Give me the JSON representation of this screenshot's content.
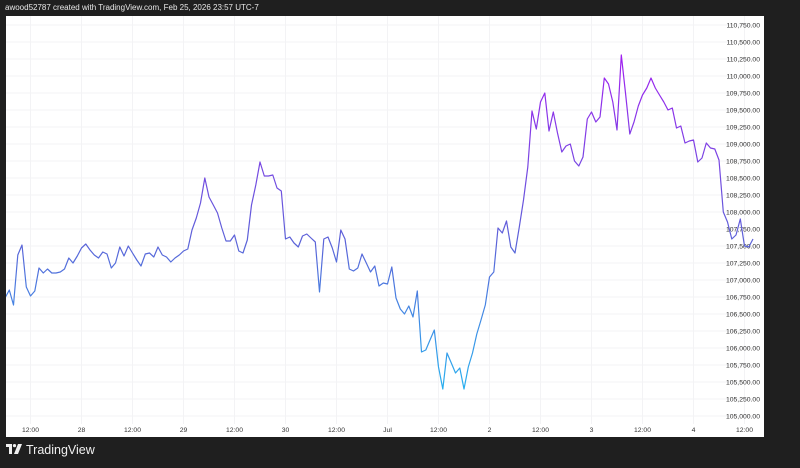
{
  "header": {
    "title": "awood52787 created with TradingView.com, Feb 25, 2026 23:57 UTC-7"
  },
  "footer": {
    "logo_text": "TradingView",
    "logo_mark": "17"
  },
  "colors": {
    "background": "#1f1f1f",
    "plot": "#ffffff",
    "grid": "#f3f3f5",
    "axis_text": "#333333",
    "line_top": "#a020f0",
    "line_mid": "#5b63d8",
    "line_bottom": "#26b3f0"
  },
  "chart_data": {
    "type": "line",
    "title": "",
    "xlabel": "",
    "ylabel": "",
    "grid": true,
    "legend": "none",
    "ylim": [
      104950,
      110900
    ],
    "y_axis_position": "right",
    "y_ticks": [
      "105,000.00",
      "105,250.00",
      "105,500.00",
      "105,750.00",
      "106,000.00",
      "106,250.00",
      "106,500.00",
      "106,750.00",
      "107,000.00",
      "107,250.00",
      "107,500.00",
      "107,750.00",
      "108,000.00",
      "108,250.00",
      "108,500.00",
      "108,750.00",
      "109,000.00",
      "109,250.00",
      "109,500.00",
      "109,750.00",
      "110,000.00",
      "110,250.00",
      "110,500.00",
      "110,750.00"
    ],
    "x_ticks": [
      {
        "label": "12:00",
        "time": "Jun 27 12:00"
      },
      {
        "label": "28",
        "time": "Jun 28 00:00"
      },
      {
        "label": "12:00",
        "time": "Jun 28 12:00"
      },
      {
        "label": "29",
        "time": "Jun 29 00:00"
      },
      {
        "label": "12:00",
        "time": "Jun 29 12:00"
      },
      {
        "label": "30",
        "time": "Jun 30 00:00"
      },
      {
        "label": "12:00",
        "time": "Jun 30 12:00"
      },
      {
        "label": "Jul",
        "time": "Jul 1 00:00"
      },
      {
        "label": "12:00",
        "time": "Jul 1 12:00"
      },
      {
        "label": "2",
        "time": "Jul 2 00:00"
      },
      {
        "label": "12:00",
        "time": "Jul 2 12:00"
      },
      {
        "label": "3",
        "time": "Jul 3 00:00"
      },
      {
        "label": "12:00",
        "time": "Jul 3 12:00"
      },
      {
        "label": "4",
        "time": "Jul 4 00:00"
      },
      {
        "label": "12:00",
        "time": "Jul 4 12:00"
      }
    ],
    "hourly": [
      {
        "date": "Jun 27",
        "first_hour": 6,
        "values": [
          106735,
          106853,
          106632,
          107368,
          107515,
          106897,
          106765,
          106838,
          107176,
          107103,
          107162,
          107103,
          107103,
          107118,
          107162,
          107324,
          107250,
          107353
        ]
      },
      {
        "date": "Jun 28",
        "first_hour": 0,
        "values": [
          107471,
          107529,
          107441,
          107368,
          107324,
          107412,
          107382,
          107176,
          107250,
          107485,
          107353,
          107500,
          107397,
          107294,
          107206,
          107382,
          107397,
          107338,
          107485,
          107368,
          107338,
          107265,
          107324,
          107368
        ]
      },
      {
        "date": "Jun 29",
        "first_hour": 0,
        "values": [
          107426,
          107456,
          107735,
          107912,
          108132,
          108500,
          108221,
          108103,
          107985,
          107765,
          107574,
          107574,
          107662,
          107426,
          107397,
          107588,
          108103,
          108397,
          108735,
          108529,
          108529,
          108544,
          108353,
          108309
        ]
      },
      {
        "date": "Jun 30",
        "first_hour": 0,
        "values": [
          107603,
          107632,
          107544,
          107485,
          107647,
          107676,
          107618,
          107559,
          106824,
          107603,
          107632,
          107471,
          107265,
          107735,
          107603,
          107162,
          107132,
          107176,
          107382,
          107250,
          107118,
          107206,
          106912,
          106956
        ]
      },
      {
        "date": "Jul 1",
        "first_hour": 0,
        "values": [
          106941,
          107191,
          106735,
          106574,
          106500,
          106618,
          106456,
          106838,
          105941,
          105971,
          106118,
          106265,
          105721,
          105397,
          105926,
          105779,
          105632,
          105706,
          105397,
          105721,
          105926,
          106206,
          106412,
          106632
        ]
      },
      {
        "date": "Jul 2",
        "first_hour": 0,
        "values": [
          107044,
          107118,
          107765,
          107691,
          107868,
          107485,
          107397,
          107779,
          108176,
          108662,
          109485,
          109221,
          109618,
          109750,
          109191,
          109471,
          109162,
          108882,
          108971,
          109000,
          108750,
          108676,
          108809,
          109368
        ]
      },
      {
        "date": "Jul 3",
        "first_hour": 0,
        "values": [
          109471,
          109324,
          109397,
          109971,
          109882,
          109618,
          109206,
          110309,
          109750,
          109147,
          109324,
          109559,
          109721,
          109824,
          109971,
          109824,
          109721,
          109618,
          109500,
          109529,
          109235,
          109265,
          109015,
          109044
        ]
      },
      {
        "date": "Jul 4",
        "first_hour": 0,
        "values": [
          109059,
          108735,
          108794,
          109015,
          108941,
          108926,
          108765,
          108000,
          107853,
          107603,
          107662,
          107897,
          107500,
          107485,
          107603
        ]
      }
    ]
  }
}
